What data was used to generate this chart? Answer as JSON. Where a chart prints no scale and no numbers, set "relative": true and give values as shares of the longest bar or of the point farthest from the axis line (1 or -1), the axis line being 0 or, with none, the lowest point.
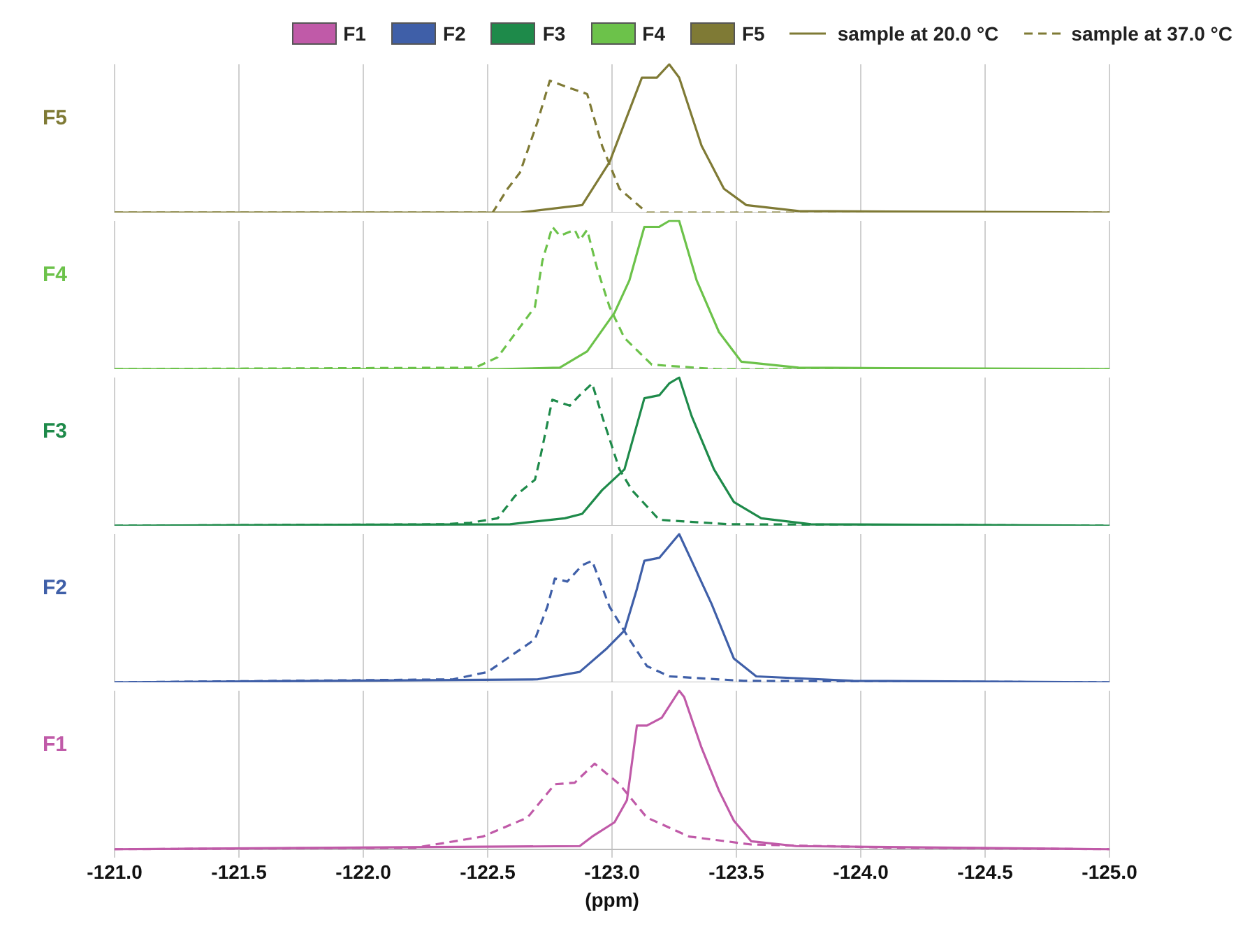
{
  "chart_data": [
    {
      "type": "line",
      "title": "F5",
      "relative": true,
      "legend": "top",
      "grid": "x",
      "tick_labels": false,
      "xlim": [
        -121,
        -125
      ],
      "xticks": [
        {
          "value": -121,
          "label": null
        },
        {
          "value": -121.5,
          "label": null
        },
        {
          "value": -122,
          "label": null
        },
        {
          "value": -122.5,
          "label": null
        },
        {
          "value": -123,
          "label": null
        },
        {
          "value": -123.5,
          "label": null
        },
        {
          "value": -124,
          "label": null
        },
        {
          "value": -124.5,
          "label": null
        },
        {
          "value": -125,
          "label": null
        }
      ],
      "series": [
        {
          "name": "sample at 20.0 °C",
          "color": "#7f7a35",
          "line_style": "solid",
          "x": [
            -121,
            -122.63,
            -122.88,
            -122.99,
            -123.12,
            -123.18,
            -123.23,
            -123.27,
            -123.36,
            -123.45,
            -123.54,
            -123.75,
            -125
          ],
          "values": [
            0,
            0,
            0.05,
            0.34,
            0.91,
            0.91,
            1,
            0.91,
            0.45,
            0.16,
            0.05,
            0.01,
            0
          ]
        },
        {
          "name": "sample at 37.0 °C",
          "color": "#7f7a35",
          "line_style": "dashed",
          "x": [
            -121,
            -122.52,
            -122.58,
            -122.63,
            -122.7,
            -122.75,
            -122.83,
            -122.9,
            -122.96,
            -123.03,
            -123.14,
            -125
          ],
          "values": [
            0,
            0,
            0.16,
            0.27,
            0.61,
            0.89,
            0.84,
            0.8,
            0.45,
            0.16,
            0,
            0
          ]
        }
      ]
    },
    {
      "type": "line",
      "title": "F4",
      "relative": true,
      "grid": "x",
      "tick_labels": false,
      "xlim": [
        -121,
        -125
      ],
      "xticks": [
        {
          "value": -121,
          "label": null
        },
        {
          "value": -121.5,
          "label": null
        },
        {
          "value": -122,
          "label": null
        },
        {
          "value": -122.5,
          "label": null
        },
        {
          "value": -123,
          "label": null
        },
        {
          "value": -123.5,
          "label": null
        },
        {
          "value": -124,
          "label": null
        },
        {
          "value": -124.5,
          "label": null
        },
        {
          "value": -125,
          "label": null
        }
      ],
      "series": [
        {
          "color": "#6cc24a",
          "line_style": "solid",
          "x": [
            -121,
            -122.54,
            -122.79,
            -122.9,
            -123.01,
            -123.07,
            -123.13,
            -123.19,
            -123.23,
            -123.27,
            -123.34,
            -123.43,
            -123.52,
            -123.75,
            -125
          ],
          "values": [
            0,
            0,
            0.01,
            0.12,
            0.38,
            0.6,
            0.96,
            0.96,
            1,
            1,
            0.6,
            0.25,
            0.05,
            0.01,
            0
          ]
        },
        {
          "color": "#6cc24a",
          "line_style": "dashed",
          "x": [
            -121,
            -122.45,
            -122.54,
            -122.69,
            -122.72,
            -122.76,
            -122.79,
            -122.85,
            -122.87,
            -122.9,
            -122.94,
            -122.99,
            -123.05,
            -123.16,
            -123.42,
            -125
          ],
          "values": [
            0,
            0.01,
            0.08,
            0.42,
            0.73,
            0.96,
            0.9,
            0.94,
            0.87,
            0.94,
            0.68,
            0.42,
            0.21,
            0.03,
            0,
            0
          ]
        }
      ]
    },
    {
      "type": "line",
      "title": "F3",
      "relative": true,
      "grid": "x",
      "tick_labels": false,
      "xlim": [
        -121,
        -125
      ],
      "xticks": [
        {
          "value": -121,
          "label": null
        },
        {
          "value": -121.5,
          "label": null
        },
        {
          "value": -122,
          "label": null
        },
        {
          "value": -122.5,
          "label": null
        },
        {
          "value": -123,
          "label": null
        },
        {
          "value": -123.5,
          "label": null
        },
        {
          "value": -124,
          "label": null
        },
        {
          "value": -124.5,
          "label": null
        },
        {
          "value": -125,
          "label": null
        }
      ],
      "series": [
        {
          "color": "#1e8a4a",
          "line_style": "solid",
          "x": [
            -121,
            -122.59,
            -122.81,
            -122.88,
            -122.96,
            -123.05,
            -123.13,
            -123.19,
            -123.23,
            -123.27,
            -123.32,
            -123.41,
            -123.49,
            -123.6,
            -123.8,
            -125
          ],
          "values": [
            0,
            0.01,
            0.05,
            0.08,
            0.24,
            0.38,
            0.86,
            0.88,
            0.96,
            1,
            0.74,
            0.38,
            0.16,
            0.05,
            0.01,
            0
          ]
        },
        {
          "color": "#1e8a4a",
          "line_style": "dashed",
          "x": [
            -121,
            -122.32,
            -122.43,
            -122.54,
            -122.61,
            -122.69,
            -122.71,
            -122.76,
            -122.83,
            -122.87,
            -122.92,
            -122.96,
            -123.03,
            -123.08,
            -123.19,
            -123.47,
            -125
          ],
          "values": [
            0,
            0.01,
            0.02,
            0.05,
            0.2,
            0.31,
            0.45,
            0.85,
            0.81,
            0.88,
            0.96,
            0.74,
            0.38,
            0.24,
            0.04,
            0.01,
            0
          ]
        }
      ]
    },
    {
      "type": "line",
      "title": "F2",
      "relative": true,
      "grid": "x",
      "tick_labels": false,
      "xlim": [
        -121,
        -125
      ],
      "xticks": [
        {
          "value": -121,
          "label": null
        },
        {
          "value": -121.5,
          "label": null
        },
        {
          "value": -122,
          "label": null
        },
        {
          "value": -122.5,
          "label": null
        },
        {
          "value": -123,
          "label": null
        },
        {
          "value": -123.5,
          "label": null
        },
        {
          "value": -124,
          "label": null
        },
        {
          "value": -124.5,
          "label": null
        },
        {
          "value": -125,
          "label": null
        }
      ],
      "series": [
        {
          "color": "#3f5fa8",
          "line_style": "solid",
          "x": [
            -121,
            -122.7,
            -122.87,
            -122.98,
            -123.05,
            -123.1,
            -123.13,
            -123.19,
            -123.23,
            -123.27,
            -123.32,
            -123.4,
            -123.49,
            -123.58,
            -123.97,
            -125
          ],
          "values": [
            0,
            0.02,
            0.07,
            0.23,
            0.35,
            0.63,
            0.82,
            0.84,
            0.92,
            1,
            0.82,
            0.53,
            0.16,
            0.04,
            0.01,
            0
          ]
        },
        {
          "color": "#3f5fa8",
          "line_style": "dashed",
          "x": [
            -121,
            -122.36,
            -122.5,
            -122.69,
            -122.74,
            -122.77,
            -122.82,
            -122.88,
            -122.92,
            -122.99,
            -123.07,
            -123.14,
            -123.23,
            -123.53,
            -125
          ],
          "values": [
            0,
            0.02,
            0.07,
            0.29,
            0.51,
            0.7,
            0.68,
            0.79,
            0.82,
            0.51,
            0.29,
            0.11,
            0.04,
            0.01,
            0
          ]
        }
      ]
    },
    {
      "type": "line",
      "title": "F1",
      "relative": true,
      "grid": "x",
      "tick_labels": "x",
      "xlabel": "(ppm)",
      "xlim": [
        -121,
        -125
      ],
      "xticks": [
        {
          "value": -121,
          "label": "-121.0"
        },
        {
          "value": -121.5,
          "label": "-121.5"
        },
        {
          "value": -122,
          "label": "-122.0"
        },
        {
          "value": -122.5,
          "label": "-122.5"
        },
        {
          "value": -123,
          "label": "-123.0"
        },
        {
          "value": -123.5,
          "label": "-123.5"
        },
        {
          "value": -124,
          "label": "-124.0"
        },
        {
          "value": -124.5,
          "label": "-124.5"
        },
        {
          "value": -125,
          "label": "-125.0"
        }
      ],
      "series": [
        {
          "color": "#c05aa8",
          "line_style": "solid",
          "x": [
            -121,
            -122.87,
            -122.92,
            -123.01,
            -123.06,
            -123.1,
            -123.14,
            -123.2,
            -123.27,
            -123.29,
            -123.36,
            -123.43,
            -123.49,
            -123.56,
            -123.74,
            -125
          ],
          "values": [
            0,
            0.02,
            0.08,
            0.17,
            0.31,
            0.78,
            0.78,
            0.83,
            1,
            0.96,
            0.64,
            0.37,
            0.18,
            0.05,
            0.02,
            0
          ]
        },
        {
          "color": "#c05aa8",
          "line_style": "dashed",
          "x": [
            -121,
            -122.21,
            -122.48,
            -122.66,
            -122.77,
            -122.85,
            -122.93,
            -123.03,
            -123.14,
            -123.31,
            -123.56,
            -124.13,
            -125
          ],
          "values": [
            0,
            0.01,
            0.08,
            0.2,
            0.41,
            0.42,
            0.54,
            0.41,
            0.2,
            0.08,
            0.03,
            0.01,
            0
          ]
        }
      ]
    }
  ]
}
